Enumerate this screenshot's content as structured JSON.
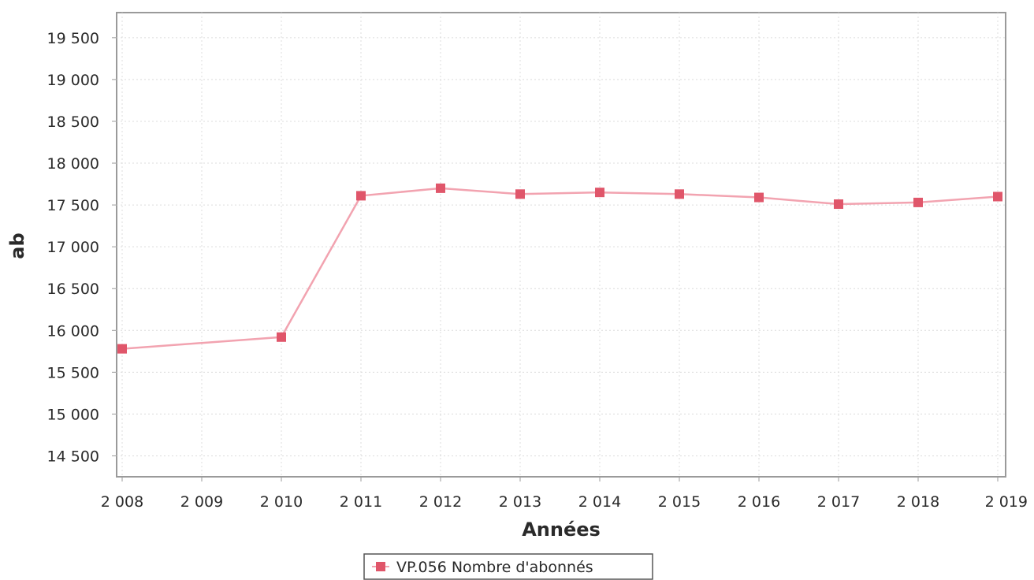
{
  "chart_data": {
    "type": "line",
    "xlabel": "Années",
    "ylabel": "ab",
    "x": [
      "2 008",
      "2 009",
      "2 010",
      "2 011",
      "2 012",
      "2 013",
      "2 014",
      "2 015",
      "2 016",
      "2 017",
      "2 018",
      "2 019"
    ],
    "y_ticks": [
      "14 500",
      "15 000",
      "15 500",
      "16 000",
      "16 500",
      "17 000",
      "17 500",
      "18 000",
      "18 500",
      "19 000",
      "19 500"
    ],
    "y_tick_values": [
      14500,
      15000,
      15500,
      16000,
      16500,
      17000,
      17500,
      18000,
      18500,
      19000,
      19500
    ],
    "ylim": [
      14250,
      19800
    ],
    "series": [
      {
        "name": "VP.056 Nombre d'abonnés",
        "color": "#e0566a",
        "line_color": "#f2a3b0",
        "points": [
          {
            "x": "2 008",
            "y": 15780
          },
          {
            "x": "2 010",
            "y": 15920
          },
          {
            "x": "2 011",
            "y": 17610
          },
          {
            "x": "2 012",
            "y": 17700
          },
          {
            "x": "2 013",
            "y": 17630
          },
          {
            "x": "2 014",
            "y": 17650
          },
          {
            "x": "2 015",
            "y": 17630
          },
          {
            "x": "2 016",
            "y": 17590
          },
          {
            "x": "2 017",
            "y": 17510
          },
          {
            "x": "2 018",
            "y": 17530
          },
          {
            "x": "2 019",
            "y": 17600
          }
        ]
      }
    ],
    "grid": true,
    "legend_position": "bottom-center"
  }
}
